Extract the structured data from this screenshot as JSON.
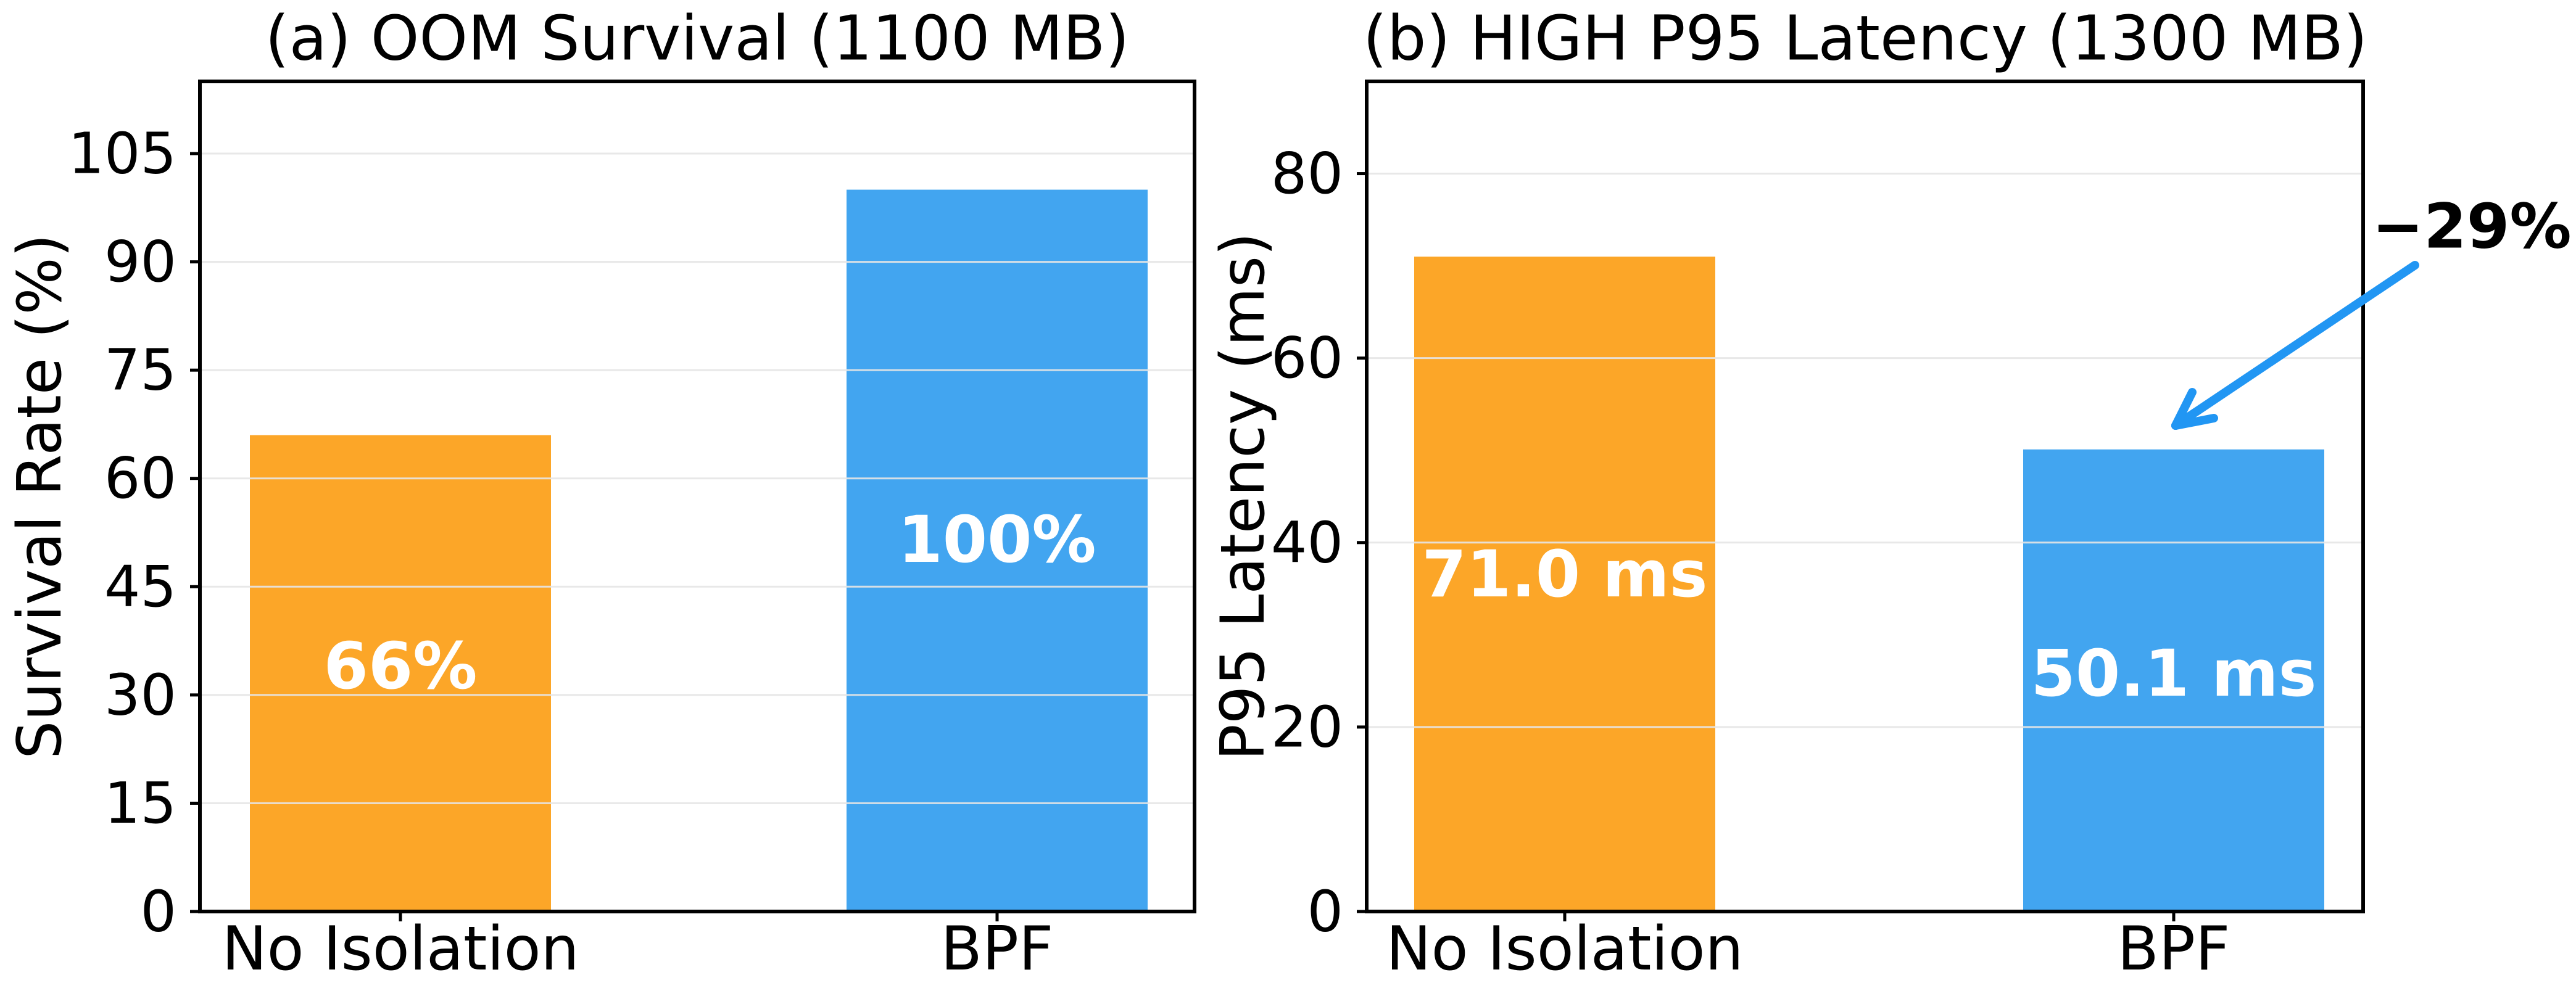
{
  "figure": {
    "background": "#ffffff",
    "grid_color": "#e6e6e6",
    "spine_color": "#000000",
    "orange": "#fca628",
    "blue": "#42a5f0",
    "annotation_blue": "#2196f3"
  },
  "chart_data": [
    {
      "type": "bar",
      "title": "(a) OOM Survival (1100 MB)",
      "ylabel": "Survival Rate (%)",
      "xlabel": "",
      "categories": [
        "No Isolation",
        "BPF"
      ],
      "values": [
        66,
        100
      ],
      "bar_labels": [
        "66%",
        "100%"
      ],
      "bar_colors": [
        "#fca628",
        "#42a5f0"
      ],
      "yticks": [
        0,
        15,
        30,
        45,
        60,
        75,
        90,
        105
      ],
      "ylim": [
        0,
        115
      ],
      "grid": true,
      "legend": null
    },
    {
      "type": "bar",
      "title": "(b) HIGH P95 Latency (1300 MB)",
      "ylabel": "P95 Latency (ms)",
      "xlabel": "",
      "categories": [
        "No Isolation",
        "BPF"
      ],
      "values": [
        71.0,
        50.1
      ],
      "bar_labels": [
        "71.0 ms",
        "50.1 ms"
      ],
      "bar_colors": [
        "#fca628",
        "#42a5f0"
      ],
      "yticks": [
        0,
        20,
        40,
        60,
        80
      ],
      "ylim": [
        0,
        90
      ],
      "grid": true,
      "legend": null,
      "annotation": {
        "text": "−29%",
        "color": "#2196f3"
      }
    }
  ]
}
